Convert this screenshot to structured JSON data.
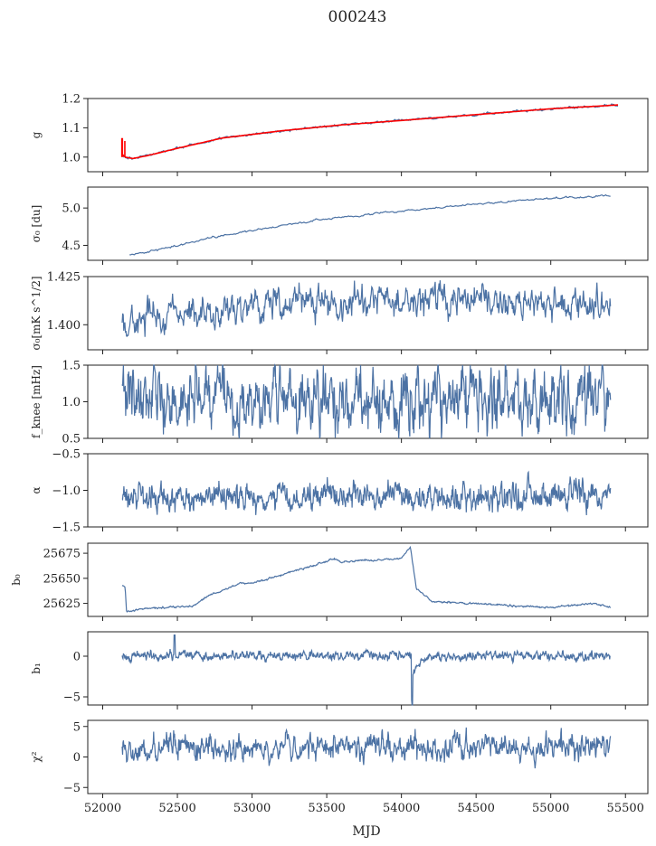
{
  "title": "000243",
  "xlabel": "MJD",
  "x_ticks": [
    "52000",
    "52500",
    "53000",
    "53500",
    "54000",
    "54500",
    "55000",
    "55500"
  ],
  "colors": {
    "series": "#4c72a4",
    "fit": "#ff0000"
  },
  "chart_data": [
    {
      "type": "line",
      "ylabel": "g",
      "xlim": [
        51900,
        55650
      ],
      "ylim": [
        0.95,
        1.2
      ],
      "yticks": [
        1.0,
        1.1,
        1.2
      ],
      "ytick_labels": [
        "1.0",
        "1.1",
        "1.2"
      ],
      "x_range": [
        52130,
        55450
      ],
      "series": [
        {
          "style": "fit",
          "x": [
            52130,
            52150,
            52200,
            52300,
            52500,
            52800,
            53200,
            53600,
            54000,
            54500,
            55000,
            55450
          ],
          "values": [
            1.01,
            1.0,
            0.995,
            1.005,
            1.03,
            1.065,
            1.09,
            1.11,
            1.125,
            1.145,
            1.165,
            1.178
          ]
        }
      ],
      "annotations": [
        {
          "x": 52130,
          "from": 1.0,
          "to": 1.065,
          "note": "red spike at start"
        }
      ]
    },
    {
      "type": "line",
      "ylabel": "σ₀ [du]",
      "xlim": [
        51900,
        55650
      ],
      "ylim": [
        4.3,
        5.28
      ],
      "yticks": [
        4.5,
        5.0
      ],
      "ytick_labels": [
        "4.5",
        "5.0"
      ],
      "x_range": [
        52180,
        55400
      ],
      "series": [
        {
          "x": [
            52180,
            52300,
            52500,
            52800,
            53200,
            53600,
            54000,
            54500,
            55000,
            55400
          ],
          "values": [
            4.37,
            4.41,
            4.5,
            4.63,
            4.77,
            4.88,
            4.96,
            5.05,
            5.13,
            5.17
          ]
        }
      ]
    },
    {
      "type": "line",
      "ylabel": "σ₀[mK s^1/2]",
      "xlim": [
        51900,
        55650
      ],
      "ylim": [
        1.387,
        1.425
      ],
      "yticks": [
        1.4,
        1.425
      ],
      "ytick_labels": [
        "1.400",
        "1.425"
      ],
      "x_range": [
        52130,
        55400
      ],
      "series": [
        {
          "x": [
            52130,
            52200,
            52400,
            52700,
            53000,
            53400,
            53800,
            54200,
            54600,
            55000,
            55300,
            55400
          ],
          "values": [
            1.398,
            1.403,
            1.405,
            1.406,
            1.409,
            1.411,
            1.412,
            1.413,
            1.412,
            1.412,
            1.409,
            1.405
          ]
        }
      ]
    },
    {
      "type": "line",
      "ylabel": "f_knee [mHz]",
      "xlim": [
        51900,
        55650
      ],
      "ylim": [
        0.5,
        1.5
      ],
      "yticks": [
        0.5,
        1.0,
        1.5
      ],
      "ytick_labels": [
        "0.5",
        "1.0",
        "1.5"
      ],
      "x_range": [
        52130,
        55400
      ],
      "series": [
        {
          "x": [
            52130,
            55400
          ],
          "values": [
            1.05,
            1.02
          ]
        }
      ]
    },
    {
      "type": "line",
      "ylabel": "α",
      "xlim": [
        51900,
        55650
      ],
      "ylim": [
        -1.5,
        -0.5
      ],
      "yticks": [
        -1.5,
        -1.0,
        -0.5
      ],
      "ytick_labels": [
        "−1.5",
        "−1.0",
        "−0.5"
      ],
      "x_range": [
        52130,
        55400
      ],
      "series": [
        {
          "x": [
            52130,
            55400
          ],
          "values": [
            -1.1,
            -1.08
          ]
        }
      ]
    },
    {
      "type": "line",
      "ylabel": "b₀",
      "xlim": [
        51900,
        55650
      ],
      "ylim": [
        25612,
        25685
      ],
      "yticks": [
        25625,
        25650,
        25675
      ],
      "ytick_labels": [
        "25625",
        "25650",
        "25675"
      ],
      "x_range": [
        52130,
        55400
      ],
      "series": [
        {
          "x": [
            52130,
            52150,
            52160,
            52300,
            52400,
            52600,
            52700,
            52900,
            53000,
            53300,
            53400,
            53550,
            53600,
            53700,
            53800,
            54000,
            54060,
            54100,
            54200,
            54500,
            54800,
            55000,
            55300,
            55400
          ],
          "values": [
            25643,
            25641,
            25617,
            25620,
            25621,
            25622,
            25632,
            25644,
            25645,
            25658,
            25662,
            25670,
            25666,
            25668,
            25668,
            25670,
            25682,
            25640,
            25627,
            25625,
            25622,
            25621,
            25625,
            25621
          ]
        }
      ]
    },
    {
      "type": "line",
      "ylabel": "b₁",
      "xlim": [
        51900,
        55650
      ],
      "ylim": [
        -6,
        3
      ],
      "yticks": [
        -5,
        0
      ],
      "ytick_labels": [
        "−5",
        "0"
      ],
      "x_range": [
        52130,
        55400
      ],
      "series": [
        {
          "x": [
            52130,
            55400
          ],
          "values": [
            0.1,
            0.0
          ]
        }
      ],
      "annotations": [
        {
          "x": 52480,
          "value": 2.6,
          "note": "spike"
        },
        {
          "x": 54070,
          "value": -5.4,
          "note": "dip"
        }
      ]
    },
    {
      "type": "line",
      "ylabel": "χ²",
      "xlim": [
        51900,
        55650
      ],
      "ylim": [
        -6,
        6
      ],
      "yticks": [
        -5,
        0,
        5
      ],
      "ytick_labels": [
        "−5",
        "0",
        "5"
      ],
      "x_range": [
        52130,
        55400
      ],
      "series": [
        {
          "x": [
            52130,
            55400
          ],
          "values": [
            1.5,
            1.8
          ]
        }
      ]
    }
  ]
}
